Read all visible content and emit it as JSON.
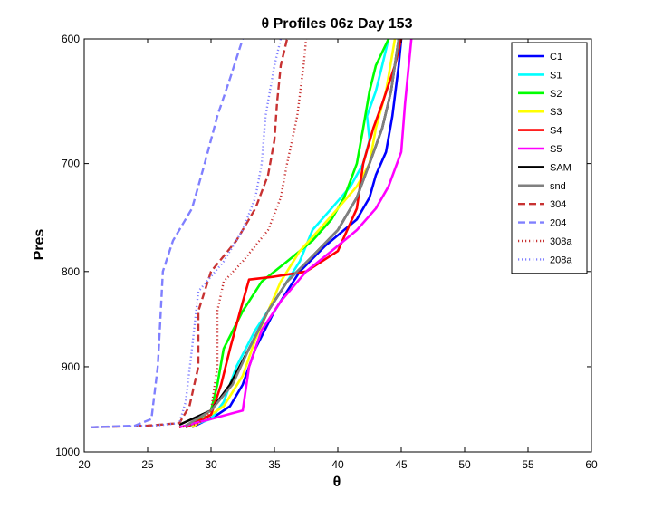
{
  "chart_data": {
    "type": "line",
    "title": "θ Profiles 06z Day 153",
    "xlabel": "θ",
    "ylabel": "Pres",
    "xlim": [
      20,
      60
    ],
    "ylim": [
      600,
      1000
    ],
    "y_reversed": true,
    "y_scale": "log",
    "x_ticks": [
      "20",
      "25",
      "30",
      "35",
      "40",
      "45",
      "50",
      "55",
      "60"
    ],
    "y_ticks": [
      "600",
      "700",
      "800",
      "900",
      "1000"
    ],
    "grid": false,
    "legend_position": "top-right",
    "series": [
      {
        "name": "C1",
        "color": "#0000ff",
        "style": "solid",
        "x": [
          28.5,
          30.5,
          31.5,
          32.5,
          33.5,
          35.0,
          37.0,
          39.0,
          41.5,
          42.5,
          43.0,
          43.8,
          44.3,
          44.8,
          45.0
        ],
        "y": [
          970,
          955,
          945,
          920,
          880,
          840,
          800,
          775,
          750,
          730,
          710,
          690,
          660,
          620,
          600
        ]
      },
      {
        "name": "S1",
        "color": "#00ffff",
        "style": "solid",
        "x": [
          28.0,
          30.0,
          31.0,
          32.0,
          33.5,
          35.5,
          37.0,
          38.0,
          39.5,
          41.0,
          42.0,
          42.5,
          42.3,
          43.0,
          43.5,
          44.0
        ],
        "y": [
          970,
          960,
          940,
          900,
          860,
          820,
          790,
          760,
          740,
          720,
          700,
          680,
          660,
          640,
          620,
          600
        ]
      },
      {
        "name": "S2",
        "color": "#00ff00",
        "style": "solid",
        "x": [
          28.0,
          30.0,
          30.5,
          31.0,
          32.5,
          34.0,
          36.0,
          38.0,
          39.5,
          40.5,
          41.5,
          42.0,
          42.5,
          43.0,
          44.0
        ],
        "y": [
          970,
          950,
          920,
          880,
          840,
          810,
          790,
          770,
          750,
          730,
          700,
          670,
          640,
          620,
          600
        ]
      },
      {
        "name": "S3",
        "color": "#ffff00",
        "style": "solid",
        "x": [
          28.5,
          31.0,
          32.5,
          33.5,
          34.5,
          35.5,
          37.0,
          38.5,
          40.0,
          41.5,
          42.5,
          43.0,
          43.8,
          44.5
        ],
        "y": [
          970,
          945,
          910,
          870,
          840,
          810,
          780,
          760,
          740,
          720,
          700,
          670,
          640,
          600
        ]
      },
      {
        "name": "S4",
        "color": "#ff0000",
        "style": "solid",
        "x": [
          28.0,
          30.0,
          30.8,
          31.5,
          32.3,
          33.0,
          35.0,
          37.5,
          40.0,
          41.5,
          42.0,
          42.8,
          43.5,
          44.5,
          45.0
        ],
        "y": [
          970,
          955,
          920,
          880,
          840,
          808,
          805,
          800,
          780,
          740,
          700,
          670,
          650,
          620,
          600
        ]
      },
      {
        "name": "S5",
        "color": "#ff00ff",
        "style": "solid",
        "x": [
          27.5,
          30.0,
          32.5,
          33.0,
          34.0,
          35.5,
          37.5,
          39.5,
          41.5,
          43.0,
          44.0,
          45.0,
          45.3,
          45.8
        ],
        "y": [
          970,
          960,
          950,
          900,
          860,
          830,
          800,
          780,
          760,
          740,
          720,
          690,
          650,
          600
        ]
      },
      {
        "name": "SAM",
        "color": "#000000",
        "style": "solid",
        "x": [
          27.5,
          30.0,
          31.5,
          33.0,
          34.5,
          36.0,
          38.0,
          40.0,
          41.5,
          42.5,
          43.5,
          44.2,
          44.8
        ],
        "y": [
          967,
          950,
          920,
          880,
          840,
          810,
          785,
          760,
          730,
          700,
          670,
          640,
          600
        ]
      },
      {
        "name": "snd",
        "color": "#808080",
        "style": "solid",
        "x": [
          28.0,
          30.0,
          31.7,
          33.0,
          34.5,
          36.0,
          38.0,
          40.0,
          41.5,
          42.5,
          43.5,
          44.2,
          44.8
        ],
        "y": [
          968,
          950,
          920,
          880,
          840,
          810,
          785,
          760,
          730,
          700,
          670,
          640,
          600
        ]
      },
      {
        "name": "304",
        "color": "#c83232",
        "style": "dashed",
        "x": [
          20.5,
          25.0,
          27.5,
          28.3,
          29.0,
          29.0,
          30.0,
          32.0,
          33.5,
          34.5,
          35.0,
          35.2,
          35.5,
          36.0
        ],
        "y": [
          970,
          968,
          965,
          945,
          900,
          840,
          800,
          770,
          740,
          710,
          680,
          650,
          620,
          600
        ]
      },
      {
        "name": "204",
        "color": "#8080ff",
        "style": "dashed",
        "x": [
          20.5,
          24.0,
          25.3,
          25.8,
          26.0,
          26.2,
          27.0,
          28.5,
          29.5,
          30.5,
          31.5,
          32.5
        ],
        "y": [
          970,
          968,
          960,
          900,
          850,
          800,
          770,
          740,
          700,
          660,
          630,
          600
        ]
      },
      {
        "name": "308a",
        "color": "#c83232",
        "style": "dotted",
        "x": [
          27.5,
          29.0,
          30.0,
          30.5,
          30.5,
          31.0,
          32.5,
          34.5,
          35.5,
          36.0,
          36.8,
          37.3,
          37.5
        ],
        "y": [
          970,
          966,
          950,
          900,
          840,
          810,
          790,
          760,
          730,
          700,
          660,
          620,
          600
        ]
      },
      {
        "name": "208a",
        "color": "#8080ff",
        "style": "dotted",
        "x": [
          20.5,
          25.5,
          27.5,
          28.0,
          28.5,
          29.0,
          31.0,
          32.5,
          33.5,
          34.0,
          34.3,
          35.0,
          35.5
        ],
        "y": [
          970,
          968,
          965,
          940,
          880,
          820,
          790,
          760,
          730,
          700,
          660,
          620,
          600
        ]
      }
    ]
  }
}
